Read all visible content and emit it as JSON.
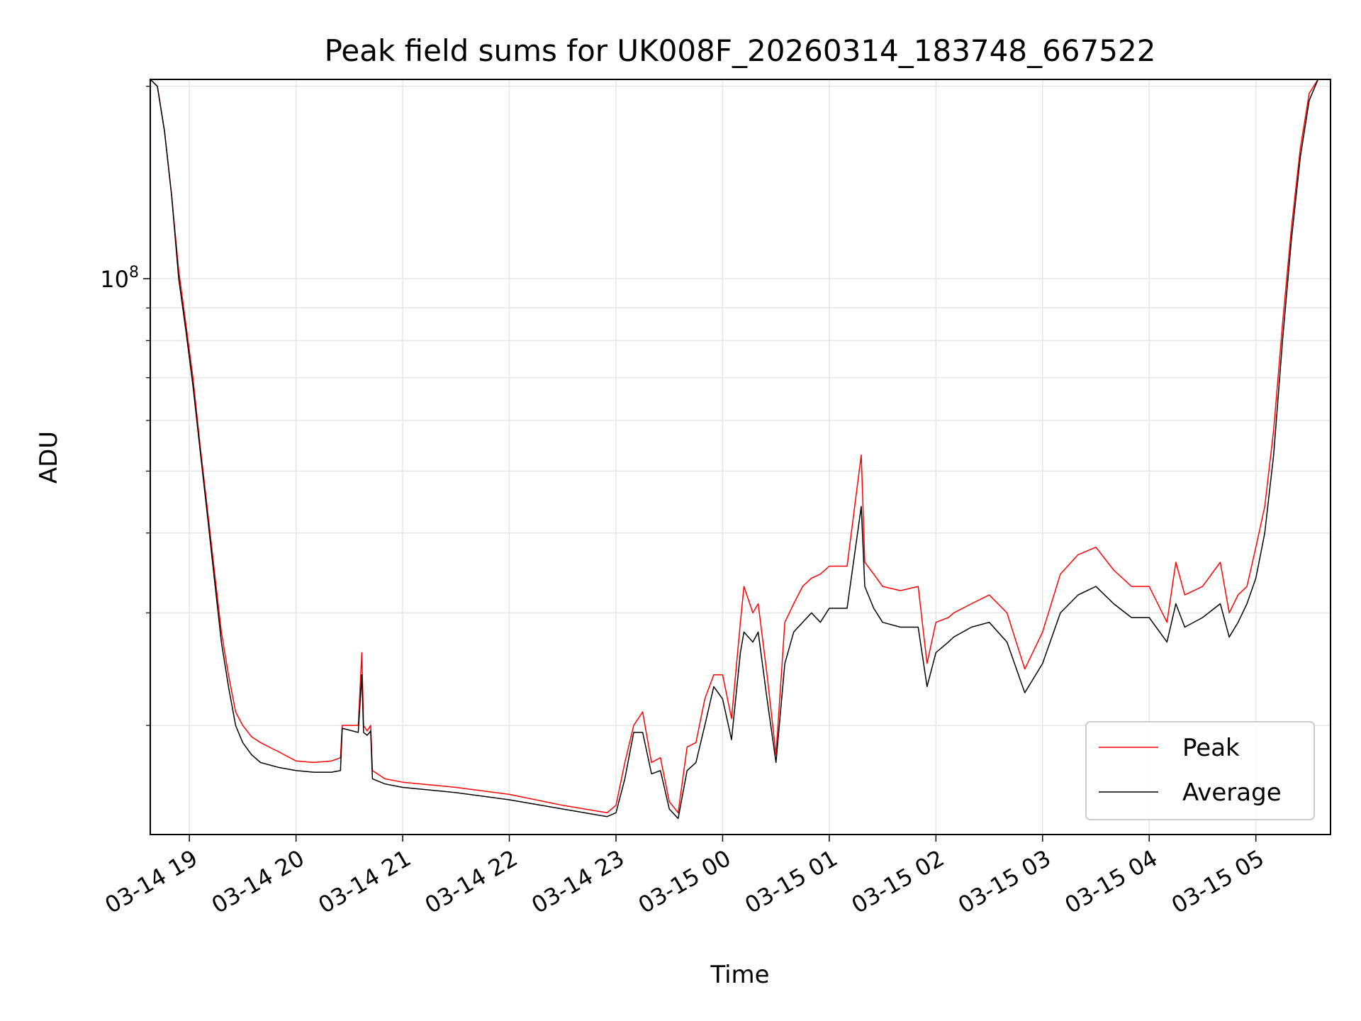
{
  "chart_data": {
    "type": "line",
    "title": "Peak field sums for UK008F_20260314_183748_667522",
    "xlabel": "Time",
    "ylabel": "ADU",
    "y_scale": "log",
    "ylim": [
      13500000,
      205000000
    ],
    "xlim": [
      "03-14 18:38",
      "03-15 05:42"
    ],
    "grid": true,
    "legend_position": "bottom-right",
    "x_tick_labels": [
      "03-14 19",
      "03-14 20",
      "03-14 21",
      "03-14 22",
      "03-14 23",
      "03-15 00",
      "03-15 01",
      "03-15 02",
      "03-15 03",
      "03-15 04",
      "03-15 05"
    ],
    "y_tick_labels": [
      {
        "base": "10",
        "exp": "8",
        "value": 100000000
      }
    ],
    "y_minor_ticks": [
      20000000,
      30000000,
      40000000,
      50000000,
      60000000,
      70000000,
      80000000,
      90000000,
      200000000
    ],
    "series_style": [
      {
        "name": "Peak",
        "color": "#ff0000"
      },
      {
        "name": "Average",
        "color": "#000000"
      }
    ],
    "x": [
      "03-14 18:38",
      "03-14 18:42",
      "03-14 18:46",
      "03-14 18:50",
      "03-14 18:54",
      "03-14 18:58",
      "03-14 19:02",
      "03-14 19:06",
      "03-14 19:10",
      "03-14 19:14",
      "03-14 19:18",
      "03-14 19:22",
      "03-14 19:26",
      "03-14 19:30",
      "03-14 19:35",
      "03-14 19:40",
      "03-14 19:50",
      "03-14 20:00",
      "03-14 20:10",
      "03-14 20:20",
      "03-14 20:25",
      "03-14 20:26",
      "03-14 20:35",
      "03-14 20:37",
      "03-14 20:38",
      "03-14 20:40",
      "03-14 20:42",
      "03-14 20:43",
      "03-14 20:50",
      "03-14 21:00",
      "03-14 21:30",
      "03-14 22:00",
      "03-14 22:30",
      "03-14 22:55",
      "03-14 23:00",
      "03-14 23:05",
      "03-14 23:10",
      "03-14 23:15",
      "03-14 23:20",
      "03-14 23:25",
      "03-14 23:30",
      "03-14 23:35",
      "03-14 23:40",
      "03-14 23:45",
      "03-14 23:50",
      "03-14 23:55",
      "03-15 00:00",
      "03-15 00:05",
      "03-15 00:10",
      "03-15 00:12",
      "03-15 00:17",
      "03-15 00:20",
      "03-15 00:25",
      "03-15 00:30",
      "03-15 00:35",
      "03-15 00:40",
      "03-15 00:45",
      "03-15 00:50",
      "03-15 00:55",
      "03-15 01:00",
      "03-15 01:10",
      "03-15 01:18",
      "03-15 01:20",
      "03-15 01:25",
      "03-15 01:30",
      "03-15 01:40",
      "03-15 01:50",
      "03-15 01:55",
      "03-15 02:00",
      "03-15 02:07",
      "03-15 02:10",
      "03-15 02:20",
      "03-15 02:30",
      "03-15 02:40",
      "03-15 02:50",
      "03-15 03:00",
      "03-15 03:10",
      "03-15 03:20",
      "03-15 03:30",
      "03-15 03:40",
      "03-15 03:50",
      "03-15 04:00",
      "03-15 04:10",
      "03-15 04:15",
      "03-15 04:20",
      "03-15 04:30",
      "03-15 04:40",
      "03-15 04:45",
      "03-15 04:50",
      "03-15 04:55",
      "03-15 05:00",
      "03-15 05:05",
      "03-15 05:10",
      "03-15 05:15",
      "03-15 05:20",
      "03-15 05:25",
      "03-15 05:30",
      "03-15 05:35",
      "03-15 05:42"
    ],
    "series": [
      {
        "name": "Peak",
        "values": [
          205000000,
          200000000,
          170000000,
          135000000,
          103000000,
          85000000,
          70000000,
          55000000,
          44000000,
          35000000,
          28000000,
          24000000,
          21000000,
          20000000,
          19200000,
          18800000,
          18200000,
          17600000,
          17500000,
          17600000,
          17800000,
          20000000,
          20000000,
          26000000,
          20000000,
          19600000,
          20000000,
          17000000,
          16500000,
          16300000,
          16000000,
          15600000,
          15000000,
          14600000,
          15000000,
          17500000,
          20000000,
          21000000,
          17500000,
          17800000,
          15200000,
          14600000,
          18500000,
          18800000,
          22000000,
          24000000,
          24000000,
          20500000,
          29000000,
          33000000,
          30000000,
          31000000,
          24000000,
          18000000,
          29000000,
          31000000,
          33000000,
          34000000,
          34500000,
          35500000,
          35500000,
          53000000,
          36000000,
          34500000,
          33000000,
          32500000,
          33000000,
          25000000,
          29000000,
          29500000,
          30000000,
          31000000,
          32000000,
          30000000,
          24500000,
          28000000,
          34500000,
          37000000,
          38000000,
          35000000,
          33000000,
          33000000,
          29000000,
          36000000,
          32000000,
          33000000,
          36000000,
          30000000,
          32000000,
          33000000,
          38000000,
          44000000,
          58000000,
          85000000,
          120000000,
          160000000,
          195000000,
          205000000,
          205000000
        ]
      },
      {
        "name": "Average",
        "values": [
          205000000,
          200000000,
          170000000,
          135000000,
          100000000,
          83000000,
          68000000,
          54000000,
          43000000,
          34000000,
          27000000,
          23000000,
          20000000,
          18800000,
          18000000,
          17500000,
          17200000,
          17000000,
          16900000,
          16900000,
          17000000,
          19800000,
          19500000,
          24000000,
          19500000,
          19300000,
          19600000,
          16500000,
          16200000,
          16000000,
          15700000,
          15300000,
          14800000,
          14400000,
          14600000,
          16500000,
          19500000,
          19500000,
          16800000,
          17000000,
          14800000,
          14300000,
          17000000,
          17500000,
          20000000,
          23000000,
          22000000,
          19000000,
          26000000,
          28000000,
          27000000,
          28000000,
          22000000,
          17500000,
          25000000,
          28000000,
          29000000,
          30000000,
          29000000,
          30500000,
          30500000,
          44000000,
          33000000,
          30500000,
          29000000,
          28500000,
          28500000,
          23000000,
          26000000,
          27000000,
          27500000,
          28500000,
          29000000,
          27000000,
          22500000,
          25000000,
          30000000,
          32000000,
          33000000,
          31000000,
          29500000,
          29500000,
          27000000,
          31000000,
          28500000,
          29500000,
          31000000,
          27500000,
          29000000,
          31000000,
          34000000,
          40000000,
          53000000,
          80000000,
          115000000,
          155000000,
          190000000,
          205000000,
          205000000
        ]
      }
    ]
  }
}
